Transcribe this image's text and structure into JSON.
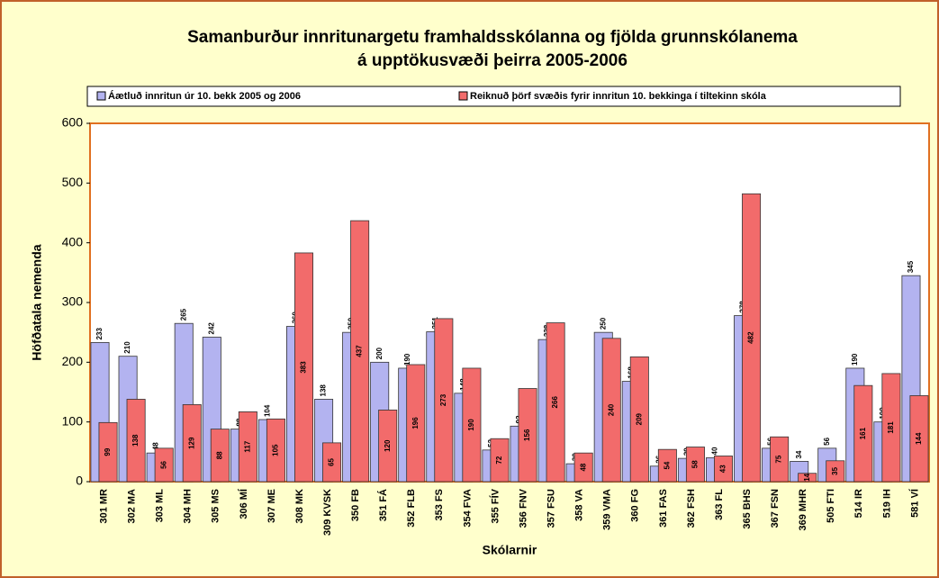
{
  "chart_data": {
    "type": "bar",
    "title": [
      "Samanburður innritunargetu framhaldsskólanna og fjölda grunnskólanema",
      "á upptökusvæði þeirra 2005-2006"
    ],
    "x_label": "Skólarnir",
    "y_label": "Höfðatala nemenda",
    "categories": [
      "301 MR",
      "302 MA",
      "303 ML",
      "304 MH",
      "305 MS",
      "306 MÍ",
      "307 ME",
      "308 MK",
      "309 KVSK",
      "350 FB",
      "351 FÁ",
      "352 FLB",
      "353 FS",
      "354 FVA",
      "355 FÍV",
      "356 FNV",
      "357 FSU",
      "358 VA",
      "359 VMA",
      "360 FG",
      "361 FAS",
      "362 FSH",
      "363 FL",
      "365 BHS",
      "367 FSN",
      "369 MHR",
      "505 FTI",
      "514 IR",
      "519 IH",
      "581 VÍ"
    ],
    "series": [
      {
        "name": "Áætluð innritun úr 10. bekk 2005 og 2006",
        "color": "#b3b3f0",
        "values": [
          233,
          210,
          48,
          265,
          242,
          88,
          104,
          260,
          138,
          250,
          200,
          190,
          251,
          148,
          53,
          93,
          238,
          30,
          250,
          168,
          26,
          39,
          40,
          278,
          56,
          34,
          56,
          190,
          100,
          345
        ]
      },
      {
        "name": "Reiknuð þörf svæðis fyrir innritun 10. bekkinga í tiltekinn skóla",
        "color": "#f26b6b",
        "values": [
          99,
          138,
          56,
          129,
          88,
          117,
          105,
          383,
          65,
          437,
          120,
          196,
          273,
          190,
          72,
          156,
          266,
          48,
          240,
          209,
          54,
          58,
          43,
          482,
          75,
          14,
          35,
          161,
          181,
          144
        ]
      }
    ],
    "ylim": [
      0,
      600
    ],
    "yticks": [
      0,
      100,
      200,
      300,
      400,
      500,
      600
    ],
    "grid": false
  }
}
